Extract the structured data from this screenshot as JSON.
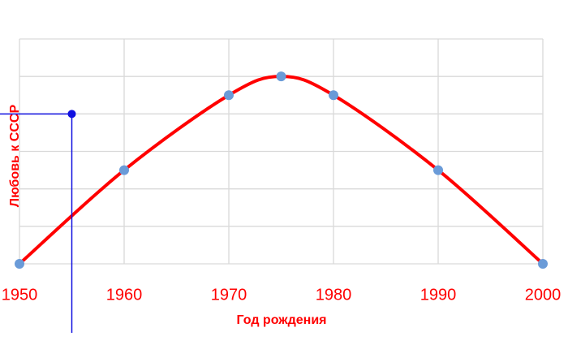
{
  "chart_data": {
    "type": "line",
    "x_label": "Год рождения",
    "y_label": "Любовь к СССР",
    "x": [
      1950,
      1960,
      1970,
      1975,
      1980,
      1990,
      2000
    ],
    "values": [
      0,
      2.5,
      4.5,
      5,
      4.5,
      2.5,
      0
    ],
    "color": "#ff0000",
    "marker_color": "#6a9bd8",
    "xlim": [
      1950,
      2000
    ],
    "xticks": [
      1950,
      1960,
      1970,
      1980,
      1990,
      2000
    ],
    "ylim": [
      0,
      6
    ],
    "yticks": [
      0,
      1,
      2,
      3,
      4,
      5,
      6
    ],
    "grid": true,
    "highlight": {
      "x": 1955,
      "y": 4,
      "color": "#1010e0"
    }
  }
}
